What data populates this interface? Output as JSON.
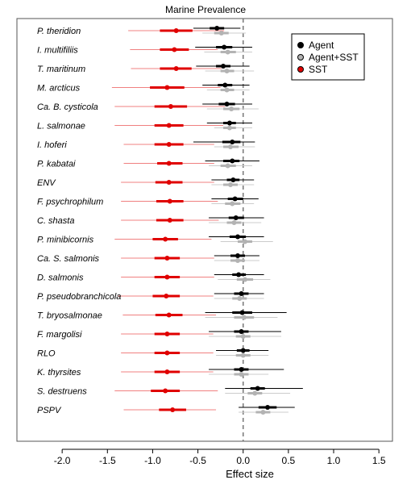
{
  "chart_data": {
    "type": "forest",
    "title": "Marine Prevalence",
    "xlabel": "Effect size",
    "ylabel": "",
    "xlim": [
      -2.5,
      1.65
    ],
    "xticks": [
      -2.0,
      -1.5,
      -1.0,
      -0.5,
      0.0,
      0.5,
      1.0,
      1.5
    ],
    "xtick_labels": [
      "-2.0",
      "-1.5",
      "-1.0",
      "-0.5",
      "0.0",
      "0.5",
      "1.0",
      "1.5"
    ],
    "reference_line": 0,
    "legend": {
      "placement": "top-right",
      "entries": [
        "Agent",
        "Agent+SST",
        "SST"
      ]
    },
    "series": [
      {
        "name": "Agent",
        "color": "#000000",
        "thin_color": "#000000"
      },
      {
        "name": "Agent+SST",
        "color": "#b3b3b3",
        "thin_color": "#cccccc"
      },
      {
        "name": "SST",
        "color": "#e00000",
        "thin_color": "#f08080"
      }
    ],
    "categories": [
      "P. theridion",
      "I. multifiliis",
      "T. maritinum",
      "M. arcticus",
      "Ca. B. cysticola",
      "L. salmonae",
      "I. hoferi",
      "P. kabatai",
      "ENV",
      "F. psychrophilum",
      "C. shasta",
      "P. minibicornis",
      "Ca. S. salmonis",
      "D. salmonis",
      "P. pseudobranchicola",
      "T. bryosalmonae",
      "F. margolisi",
      "RLO",
      "K. thyrsites",
      "S. destruens",
      "PSPV"
    ],
    "rows": [
      {
        "agent": [
          -0.55,
          -0.37,
          -0.29,
          -0.21,
          -0.03
        ],
        "agent_sst": [
          -0.45,
          -0.32,
          -0.24,
          -0.16,
          0.03
        ],
        "sst": [
          -1.27,
          -0.92,
          -0.74,
          -0.56,
          -0.21
        ]
      },
      {
        "agent": [
          -0.53,
          -0.3,
          -0.21,
          -0.12,
          0.1
        ],
        "agent_sst": [
          -0.43,
          -0.25,
          -0.17,
          -0.08,
          0.1
        ],
        "sst": [
          -1.25,
          -0.92,
          -0.76,
          -0.6,
          -0.28
        ]
      },
      {
        "agent": [
          -0.52,
          -0.3,
          -0.22,
          -0.14,
          0.07
        ],
        "agent_sst": [
          -0.42,
          -0.25,
          -0.18,
          -0.1,
          0.12
        ],
        "sst": [
          -1.24,
          -0.92,
          -0.74,
          -0.57,
          -0.24
        ]
      },
      {
        "agent": [
          -0.45,
          -0.28,
          -0.2,
          -0.12,
          0.07
        ],
        "agent_sst": [
          -0.4,
          -0.25,
          -0.18,
          -0.1,
          0.07
        ],
        "sst": [
          -1.45,
          -1.03,
          -0.84,
          -0.65,
          -0.25
        ]
      },
      {
        "agent": [
          -0.45,
          -0.27,
          -0.18,
          -0.09,
          0.1
        ],
        "agent_sst": [
          -0.4,
          -0.22,
          -0.13,
          -0.04,
          0.17
        ],
        "sst": [
          -1.42,
          -0.98,
          -0.8,
          -0.62,
          -0.2
        ]
      },
      {
        "agent": [
          -0.4,
          -0.22,
          -0.15,
          -0.08,
          0.1
        ],
        "agent_sst": [
          -0.32,
          -0.22,
          -0.15,
          -0.08,
          0.1
        ],
        "sst": [
          -1.42,
          -0.98,
          -0.82,
          -0.66,
          -0.22
        ]
      },
      {
        "agent": [
          -0.55,
          -0.23,
          -0.12,
          -0.03,
          0.13
        ],
        "agent_sst": [
          -0.32,
          -0.22,
          -0.14,
          -0.05,
          0.13
        ],
        "sst": [
          -1.32,
          -0.98,
          -0.82,
          -0.66,
          -0.32
        ]
      },
      {
        "agent": [
          -0.42,
          -0.22,
          -0.12,
          -0.04,
          0.18
        ],
        "agent_sst": [
          -0.38,
          -0.25,
          -0.17,
          -0.08,
          0.1
        ],
        "sst": [
          -1.32,
          -0.95,
          -0.82,
          -0.67,
          -0.32
        ]
      },
      {
        "agent": [
          -0.35,
          -0.18,
          -0.11,
          -0.04,
          0.12
        ],
        "agent_sst": [
          -0.35,
          -0.22,
          -0.14,
          -0.06,
          0.12
        ],
        "sst": [
          -1.35,
          -0.97,
          -0.82,
          -0.67,
          -0.32
        ]
      },
      {
        "agent": [
          -0.35,
          -0.17,
          -0.09,
          0.0,
          0.17
        ],
        "agent_sst": [
          -0.35,
          -0.2,
          -0.12,
          -0.03,
          0.12
        ],
        "sst": [
          -1.35,
          -0.96,
          -0.81,
          -0.66,
          -0.28
        ]
      },
      {
        "agent": [
          -0.38,
          -0.16,
          -0.08,
          0.01,
          0.23
        ],
        "agent_sst": [
          -0.38,
          -0.18,
          -0.1,
          -0.02,
          0.2
        ],
        "sst": [
          -1.35,
          -0.96,
          -0.81,
          -0.66,
          -0.27
        ]
      },
      {
        "agent": [
          -0.38,
          -0.15,
          -0.06,
          0.03,
          0.23
        ],
        "agent_sst": [
          -0.25,
          -0.06,
          0.02,
          0.1,
          0.33
        ],
        "sst": [
          -1.42,
          -1.0,
          -0.86,
          -0.72,
          -0.35
        ]
      },
      {
        "agent": [
          -0.32,
          -0.14,
          -0.06,
          0.02,
          0.18
        ],
        "agent_sst": [
          -0.32,
          -0.14,
          -0.06,
          0.02,
          0.18
        ],
        "sst": [
          -1.35,
          -0.98,
          -0.84,
          -0.7,
          -0.32
        ]
      },
      {
        "agent": [
          -0.32,
          -0.12,
          -0.05,
          0.03,
          0.23
        ],
        "agent_sst": [
          -0.28,
          -0.07,
          0.02,
          0.11,
          0.3
        ],
        "sst": [
          -1.35,
          -0.98,
          -0.84,
          -0.7,
          -0.32
        ]
      },
      {
        "agent": [
          -0.32,
          -0.1,
          -0.02,
          0.06,
          0.23
        ],
        "agent_sst": [
          -0.32,
          -0.12,
          -0.04,
          0.04,
          0.23
        ],
        "sst": [
          -1.38,
          -1.0,
          -0.85,
          -0.7,
          -0.33
        ]
      },
      {
        "agent": [
          -0.42,
          -0.12,
          -0.01,
          0.1,
          0.48
        ],
        "agent_sst": [
          -0.42,
          -0.1,
          0.01,
          0.12,
          0.38
        ],
        "sst": [
          -1.33,
          -0.97,
          -0.82,
          -0.67,
          -0.3
        ]
      },
      {
        "agent": [
          -0.38,
          -0.1,
          -0.02,
          0.06,
          0.42
        ],
        "agent_sst": [
          -0.38,
          -0.08,
          0.0,
          0.08,
          0.42
        ],
        "sst": [
          -1.35,
          -0.98,
          -0.84,
          -0.7,
          -0.33
        ]
      },
      {
        "agent": [
          -0.3,
          -0.07,
          0.0,
          0.07,
          0.28
        ],
        "agent_sst": [
          -0.3,
          -0.08,
          0.0,
          0.08,
          0.28
        ],
        "sst": [
          -1.35,
          -0.98,
          -0.84,
          -0.7,
          -0.33
        ]
      },
      {
        "agent": [
          -0.38,
          -0.1,
          -0.02,
          0.06,
          0.45
        ],
        "agent_sst": [
          -0.38,
          -0.1,
          -0.02,
          0.06,
          0.28
        ],
        "sst": [
          -1.35,
          -0.98,
          -0.84,
          -0.7,
          -0.33
        ]
      },
      {
        "agent": [
          -0.2,
          0.08,
          0.16,
          0.24,
          0.66
        ],
        "agent_sst": [
          -0.2,
          0.05,
          0.13,
          0.21,
          0.52
        ],
        "sst": [
          -1.42,
          -1.02,
          -0.86,
          -0.7,
          -0.28
        ]
      },
      {
        "agent": [
          -0.05,
          0.17,
          0.27,
          0.37,
          0.57
        ],
        "agent_sst": [
          -0.05,
          0.14,
          0.22,
          0.3,
          0.5
        ],
        "sst": [
          -1.32,
          -0.93,
          -0.78,
          -0.63,
          -0.3
        ]
      }
    ]
  }
}
